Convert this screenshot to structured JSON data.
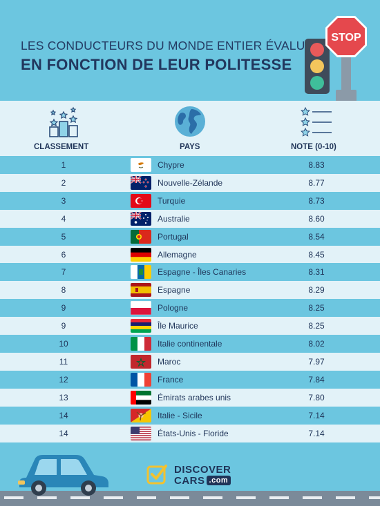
{
  "header": {
    "title_line1": "LES CONDUCTEURS DU MONDE ENTIER ÉVALUÉS",
    "title_line2": "EN FONCTION DE LEUR POLITESSE",
    "stop_sign_text": "STOP"
  },
  "columns": {
    "rank": "CLASSEMENT",
    "country": "PAYS",
    "score": "NOTE (0-10)"
  },
  "rows": [
    {
      "rank": "1",
      "country": "Chypre",
      "score": "8.83",
      "flag": "cyprus"
    },
    {
      "rank": "2",
      "country": "Nouvelle-Zélande",
      "score": "8.77",
      "flag": "new-zealand"
    },
    {
      "rank": "3",
      "country": "Turquie",
      "score": "8.73",
      "flag": "turkey"
    },
    {
      "rank": "4",
      "country": "Australie",
      "score": "8.60",
      "flag": "australia"
    },
    {
      "rank": "5",
      "country": "Portugal",
      "score": "8.54",
      "flag": "portugal"
    },
    {
      "rank": "6",
      "country": "Allemagne",
      "score": "8.45",
      "flag": "germany"
    },
    {
      "rank": "7",
      "country": "Espagne - Îles Canaries",
      "score": "8.31",
      "flag": "canary-islands"
    },
    {
      "rank": "8",
      "country": "Espagne",
      "score": "8.29",
      "flag": "spain"
    },
    {
      "rank": "9",
      "country": "Pologne",
      "score": "8.25",
      "flag": "poland"
    },
    {
      "rank": "9",
      "country": "Île Maurice",
      "score": "8.25",
      "flag": "mauritius"
    },
    {
      "rank": "10",
      "country": "Italie continentale",
      "score": "8.02",
      "flag": "italy"
    },
    {
      "rank": "11",
      "country": "Maroc",
      "score": "7.97",
      "flag": "morocco"
    },
    {
      "rank": "12",
      "country": "France",
      "score": "7.84",
      "flag": "france"
    },
    {
      "rank": "13",
      "country": "Émirats arabes unis",
      "score": "7.80",
      "flag": "uae"
    },
    {
      "rank": "14",
      "country": "Italie - Sicile",
      "score": "7.14",
      "flag": "sicily"
    },
    {
      "rank": "14",
      "country": "États-Unis - Floride",
      "score": "7.14",
      "flag": "usa"
    }
  ],
  "footer": {
    "brand_line1": "DISCOVER",
    "brand_line2": "CARS",
    "brand_com": ".com"
  },
  "colors": {
    "background": "#6cc6e0",
    "light_row": "#e2f2f8",
    "text": "#1f3458"
  }
}
